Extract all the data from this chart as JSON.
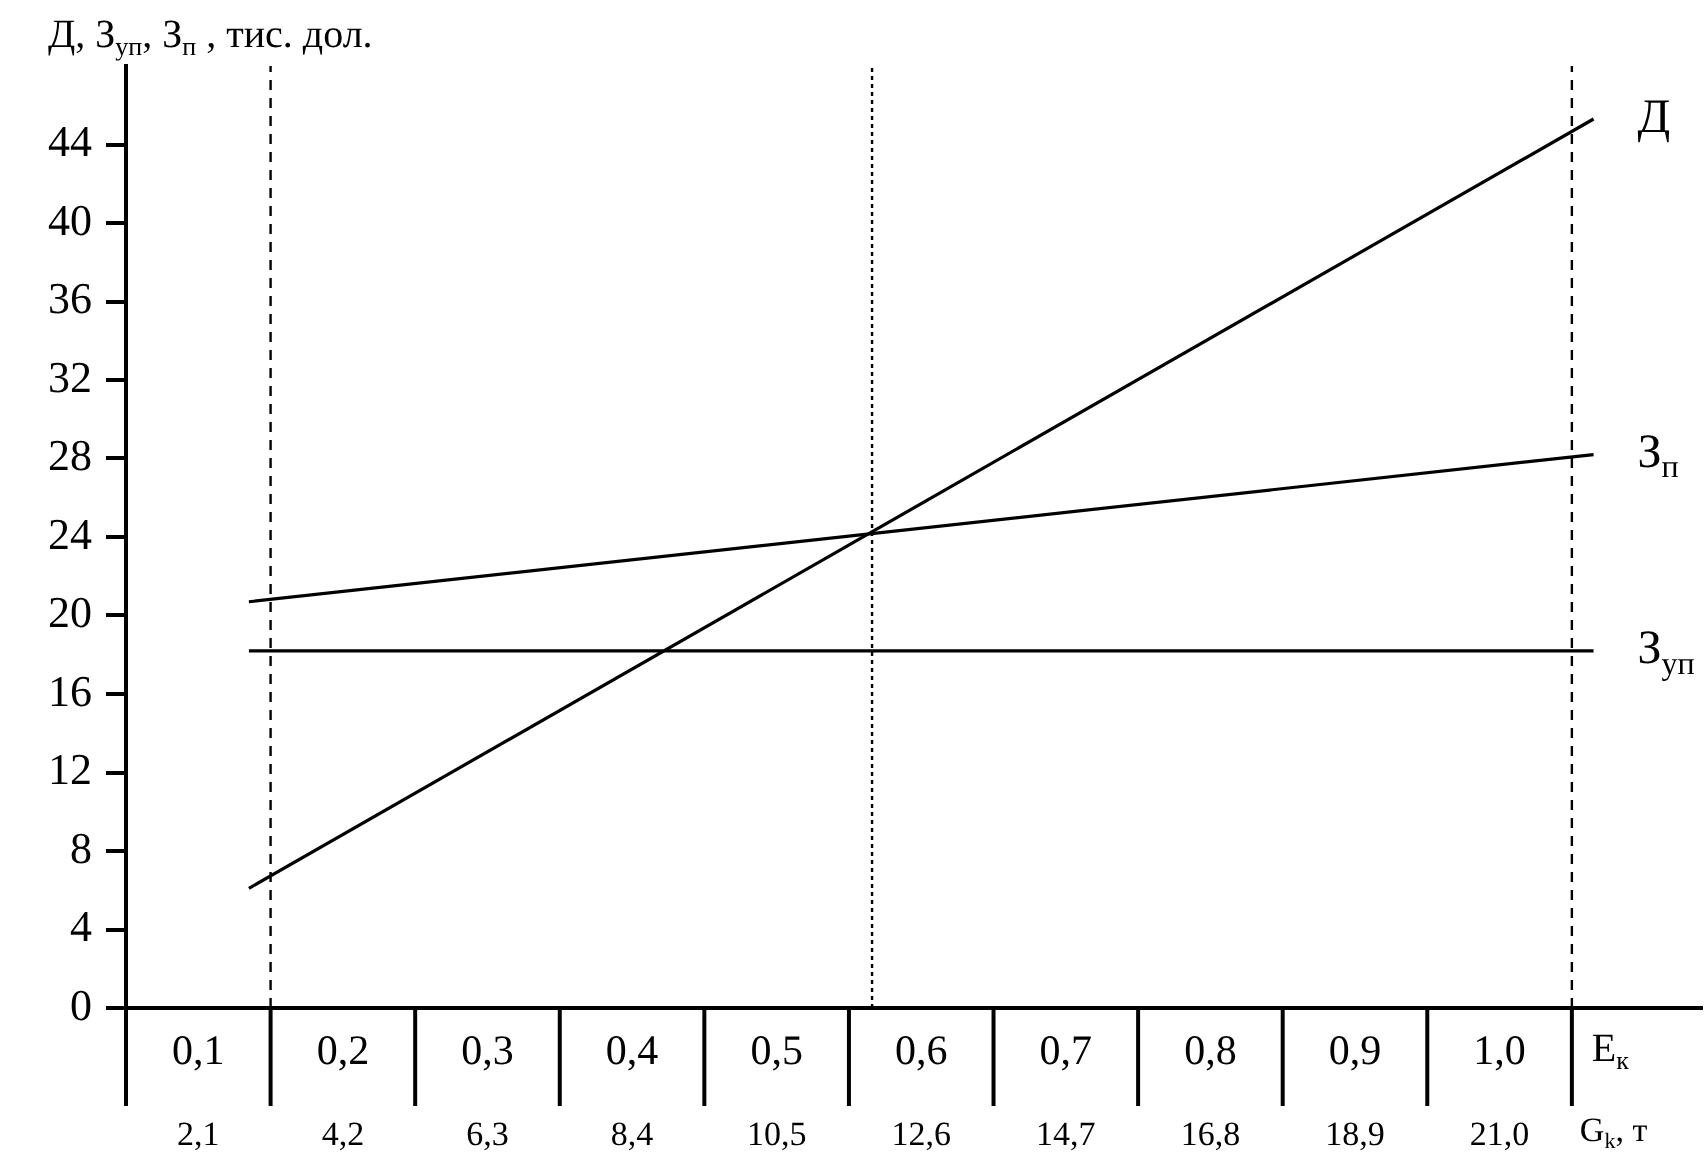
{
  "chart_data": {
    "type": "line",
    "ylabel": "Д, З$_{уп}$, З$_{п}$ , тис. дол.",
    "xlabel": "E$_{к}$",
    "x2label": "G$_{k}$, т",
    "xlim": [
      0.05,
      1.14
    ],
    "xticks": [
      {
        "value": 0.1,
        "label": "0,1"
      },
      {
        "value": 0.2,
        "label": "0,2"
      },
      {
        "value": 0.3,
        "label": "0,3"
      },
      {
        "value": 0.4,
        "label": "0,4"
      },
      {
        "value": 0.5,
        "label": "0,5"
      },
      {
        "value": 0.6,
        "label": "0,6"
      },
      {
        "value": 0.7,
        "label": "0,7"
      },
      {
        "value": 0.8,
        "label": "0,8"
      },
      {
        "value": 0.9,
        "label": "0,9"
      },
      {
        "value": 1.0,
        "label": "1,0"
      }
    ],
    "x2lim": [
      1.05,
      23.94
    ],
    "x2ticks": [
      {
        "value": 2.1,
        "label": "2,1"
      },
      {
        "value": 4.2,
        "label": "4,2"
      },
      {
        "value": 6.3,
        "label": "6,3"
      },
      {
        "value": 8.4,
        "label": "8,4"
      },
      {
        "value": 10.5,
        "label": "10,5"
      },
      {
        "value": 12.6,
        "label": "12,6"
      },
      {
        "value": 14.7,
        "label": "14,7"
      },
      {
        "value": 16.8,
        "label": "16,8"
      },
      {
        "value": 18.9,
        "label": "18,9"
      },
      {
        "value": 21.0,
        "label": "21,0"
      }
    ],
    "ylim": [
      0,
      48
    ],
    "yticks": [
      0,
      4,
      8,
      12,
      16,
      20,
      24,
      28,
      32,
      36,
      40,
      44
    ],
    "grid": false,
    "legend": false,
    "marker": "none",
    "line_style": "solid",
    "x": [
      0.135,
      1.065
    ],
    "series": [
      {
        "name": "Д",
        "color": "#000000",
        "values": [
          6.1,
          45.3
        ]
      },
      {
        "name": "З$_{п}$",
        "color": "#000000",
        "values": [
          20.7,
          28.2
        ]
      },
      {
        "name": "З$_{уп}$",
        "color": "#000000",
        "values": [
          18.2,
          18.2
        ]
      }
    ],
    "ref_lines": [
      {
        "axis": "x",
        "value": 0.15,
        "color": "#000000",
        "line_style": "dashed"
      },
      {
        "axis": "x",
        "value": 0.566,
        "color": "#000000",
        "line_style": "dotted"
      },
      {
        "axis": "x",
        "value": 1.05,
        "color": "#000000",
        "line_style": "dashed"
      }
    ]
  }
}
